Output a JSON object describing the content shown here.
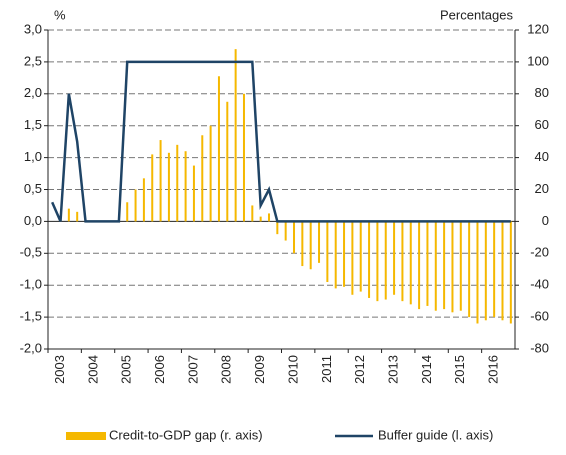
{
  "chart_data": {
    "type": "bar",
    "y_unit_label": "%",
    "y2_unit_label": "Percentages",
    "categories": [
      null,
      "2003",
      null,
      null,
      null,
      "2004",
      null,
      null,
      null,
      "2005",
      null,
      null,
      null,
      "2006",
      null,
      null,
      null,
      "2007",
      null,
      null,
      null,
      "2008",
      null,
      null,
      null,
      "2009",
      null,
      null,
      null,
      "2010",
      null,
      null,
      null,
      "2011",
      null,
      null,
      null,
      "2012",
      null,
      null,
      null,
      "2013",
      null,
      null,
      null,
      "2014",
      null,
      null,
      null,
      "2015",
      null,
      null,
      null,
      "2016",
      null,
      null
    ],
    "series": [
      {
        "name": "Credit-to-GDP gap (r. axis)",
        "type": "bar",
        "axis": "y2",
        "color": "#f5b800",
        "values": [
          0,
          0,
          8,
          6,
          0,
          0,
          0,
          0,
          0,
          12,
          20,
          27,
          42,
          51,
          43,
          48,
          44,
          35,
          54,
          60,
          91,
          75,
          108,
          80,
          10,
          3,
          5,
          -8,
          -12,
          -20,
          -28,
          -30,
          -26,
          -38,
          -42,
          -41,
          -46,
          -44,
          -48,
          -50,
          -49,
          -46,
          -50,
          -52,
          -55,
          -53,
          -56,
          -55,
          -57,
          -56,
          -60,
          -64,
          -62,
          -60,
          -62,
          -64
        ]
      },
      {
        "name": "Buffer guide (l. axis)",
        "type": "line",
        "axis": "y",
        "color": "#1f4466",
        "values": [
          0.3,
          0,
          2.0,
          1.25,
          0,
          0,
          0,
          0,
          0,
          2.5,
          2.5,
          2.5,
          2.5,
          2.5,
          2.5,
          2.5,
          2.5,
          2.5,
          2.5,
          2.5,
          2.5,
          2.5,
          2.5,
          2.5,
          2.5,
          0.25,
          0.5,
          0,
          0,
          0,
          0,
          0,
          0,
          0,
          0,
          0,
          0,
          0,
          0,
          0,
          0,
          0,
          0,
          0,
          0,
          0,
          0,
          0,
          0,
          0,
          0,
          0,
          0,
          0,
          0,
          0
        ]
      }
    ],
    "ylim": [
      -2,
      3
    ],
    "yticks": [
      {
        "value": 3,
        "label": "3,0"
      },
      {
        "value": 2.5,
        "label": "2,5"
      },
      {
        "value": 2,
        "label": "2,0"
      },
      {
        "value": 1.5,
        "label": "1,5"
      },
      {
        "value": 1,
        "label": "1,0"
      },
      {
        "value": 0.5,
        "label": "0,5"
      },
      {
        "value": 0,
        "label": "0,0"
      },
      {
        "value": -0.5,
        "label": "-0,5"
      },
      {
        "value": -1,
        "label": "-1,0"
      },
      {
        "value": -1.5,
        "label": "-1,5"
      },
      {
        "value": -2,
        "label": "-2,0"
      }
    ],
    "y2lim": [
      -80,
      120
    ],
    "y2ticks": [
      120,
      100,
      80,
      60,
      40,
      20,
      0,
      -20,
      -40,
      -60,
      -80
    ],
    "grid": true
  }
}
